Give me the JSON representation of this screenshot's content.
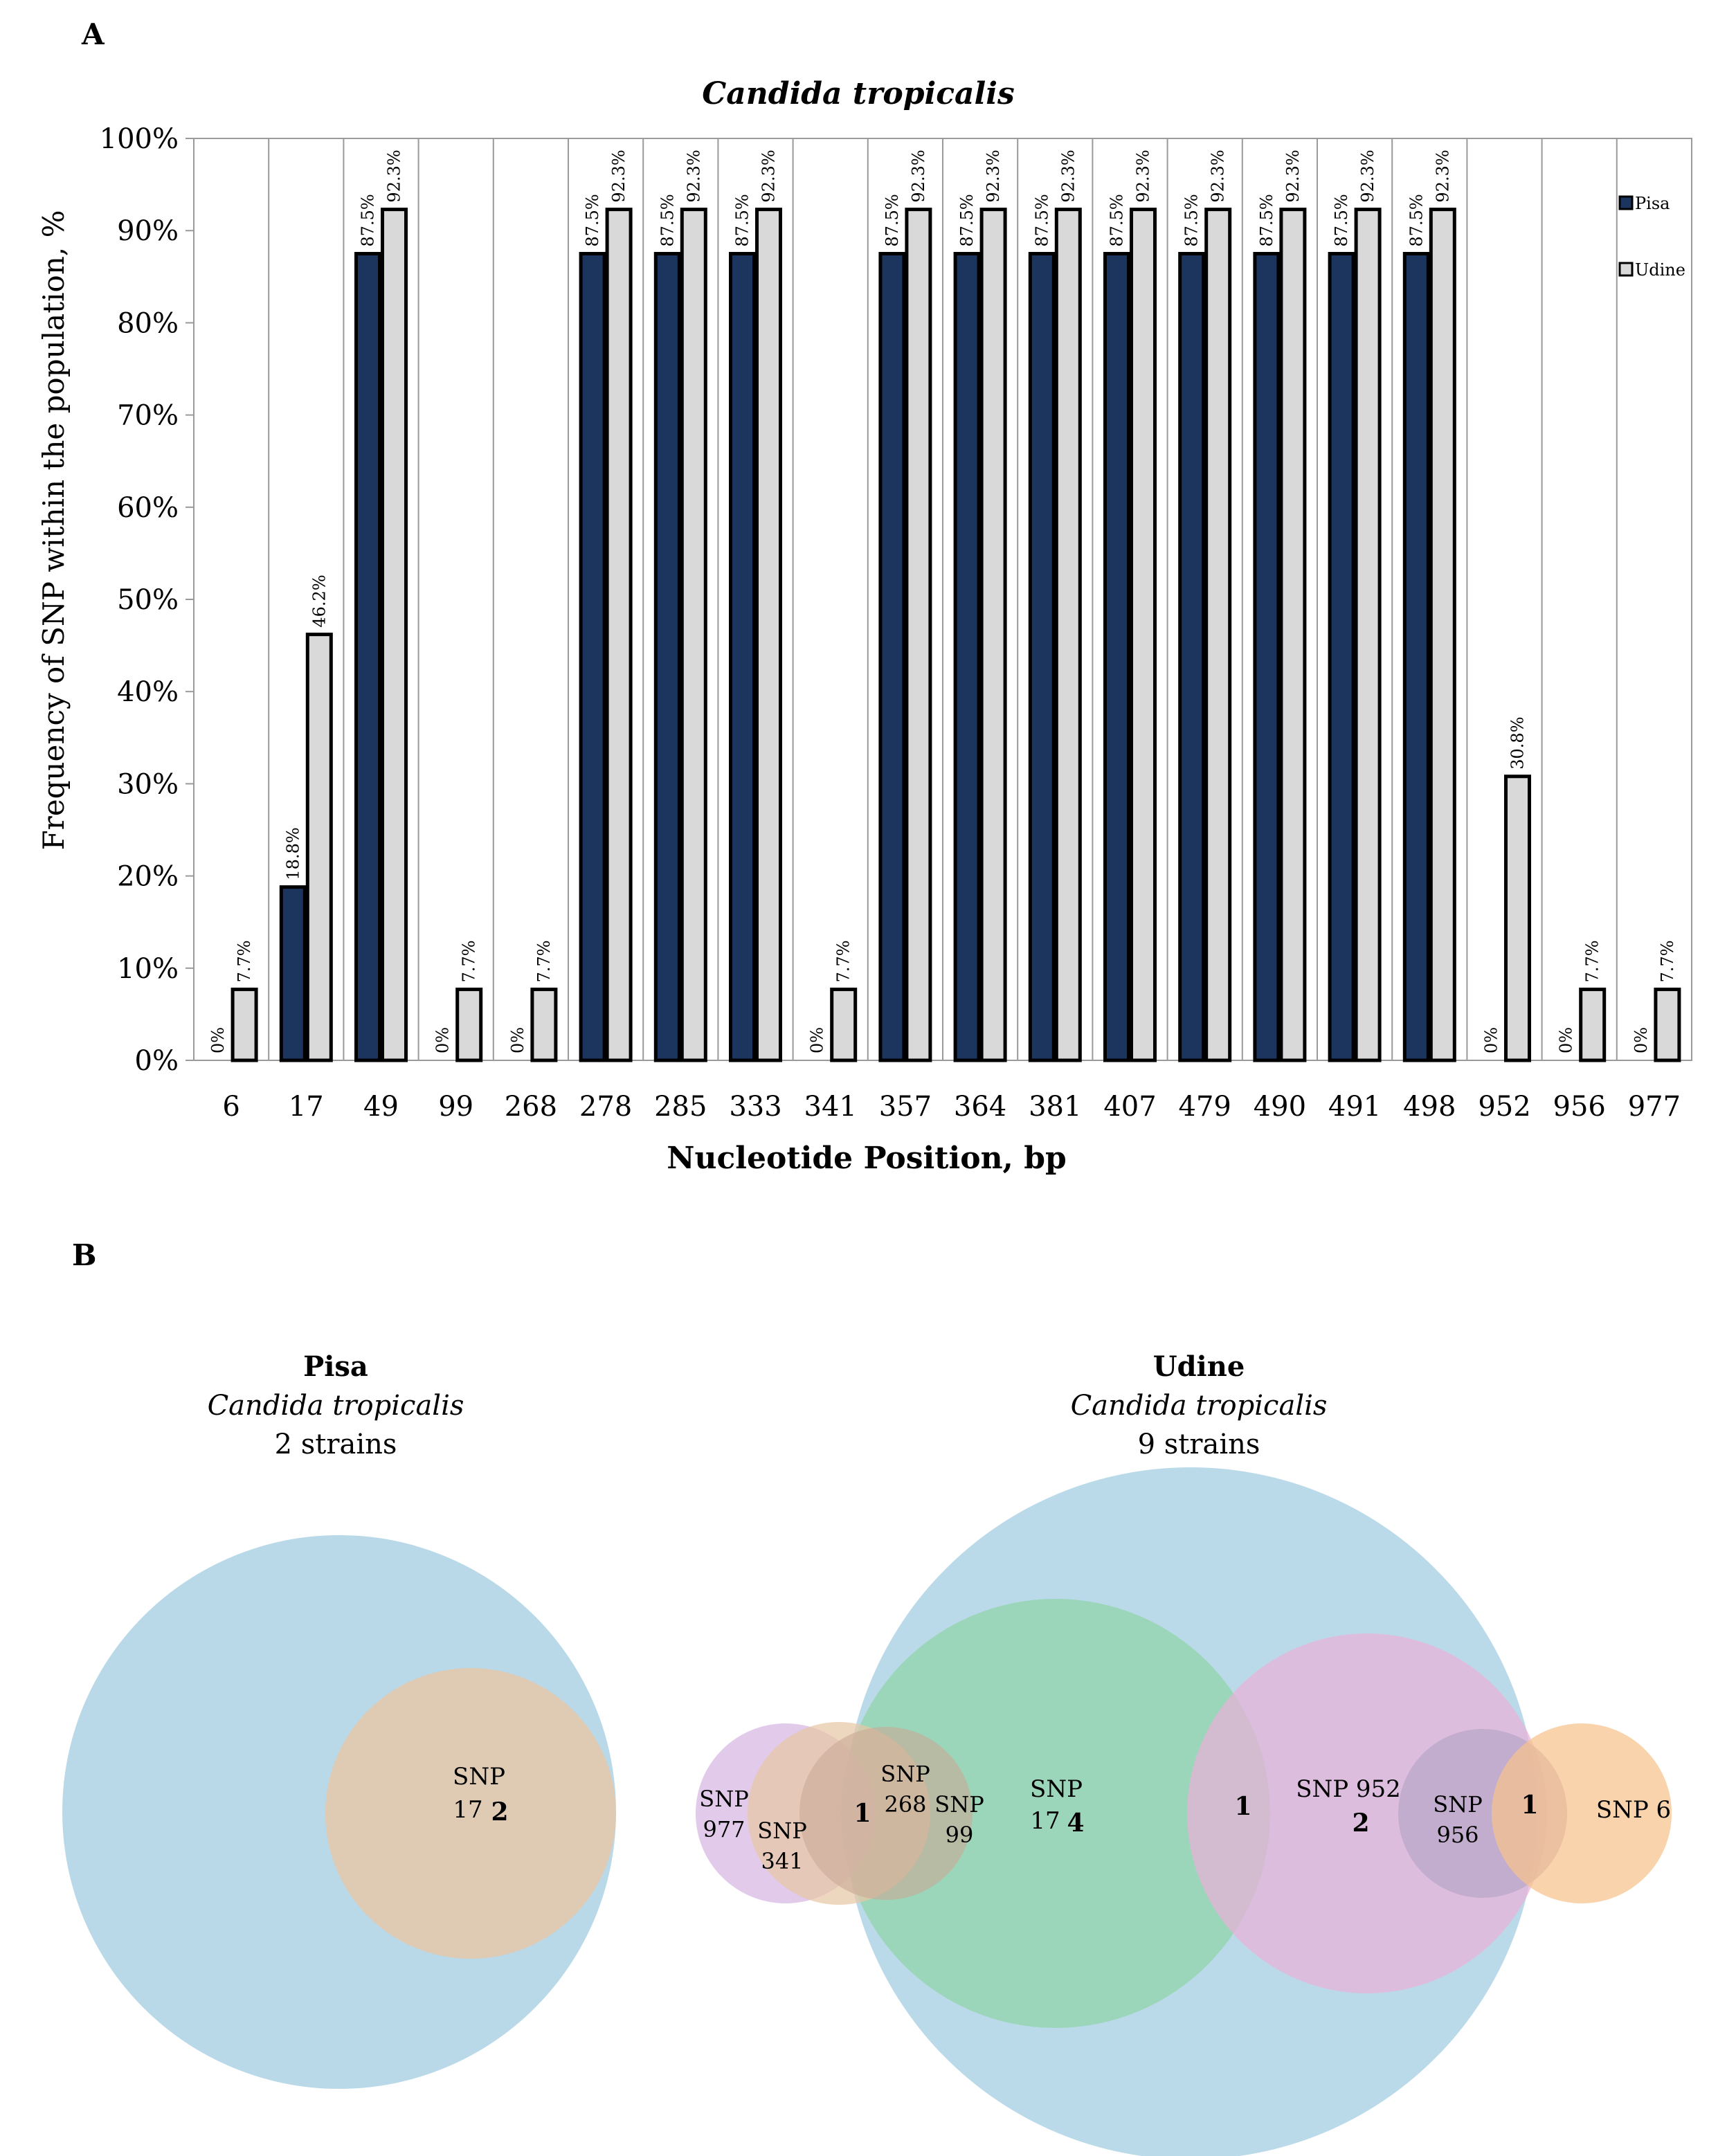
{
  "panel_a": {
    "label": "A",
    "chart_data": {
      "type": "bar",
      "title": "Candida tropicalis",
      "xlabel": "Nucleotide Position, bp",
      "ylabel": "Frequency of SNP within the population, %",
      "ylim": [
        0,
        100
      ],
      "yticks": [
        "0%",
        "10%",
        "20%",
        "30%",
        "40%",
        "50%",
        "60%",
        "70%",
        "80%",
        "90%",
        "100%"
      ],
      "categories": [
        "6",
        "17",
        "49",
        "99",
        "268",
        "278",
        "285",
        "333",
        "341",
        "357",
        "364",
        "381",
        "407",
        "479",
        "490",
        "491",
        "498",
        "952",
        "956",
        "977"
      ],
      "series": [
        {
          "name": "Pisa",
          "color": "#1b355e",
          "values": [
            0,
            18.8,
            87.5,
            0,
            0,
            87.5,
            87.5,
            87.5,
            0,
            87.5,
            87.5,
            87.5,
            87.5,
            87.5,
            87.5,
            87.5,
            87.5,
            0,
            0,
            0
          ],
          "labels": [
            "0%",
            "18.8%",
            "87.5%",
            "0%",
            "0%",
            "87.5%",
            "87.5%",
            "87.5%",
            "0%",
            "87.5%",
            "87.5%",
            "87.5%",
            "87.5%",
            "87.5%",
            "87.5%",
            "87.5%",
            "87.5%",
            "0%",
            "0%",
            "0%"
          ]
        },
        {
          "name": "Udine",
          "color": "#d9d9d9",
          "values": [
            7.7,
            46.2,
            92.3,
            7.7,
            7.7,
            92.3,
            92.3,
            92.3,
            7.7,
            92.3,
            92.3,
            92.3,
            92.3,
            92.3,
            92.3,
            92.3,
            92.3,
            30.8,
            7.7,
            7.7
          ],
          "labels": [
            "7.7%",
            "46.2%",
            "92.3%",
            "7.7%",
            "7.7%",
            "92.3%",
            "92.3%",
            "92.3%",
            "7.7%",
            "92.3%",
            "92.3%",
            "92.3%",
            "92.3%",
            "92.3%",
            "92.3%",
            "92.3%",
            "92.3%",
            "30.8%",
            "7.7%",
            "7.7%"
          ]
        }
      ],
      "legend": [
        "Pisa",
        "Udine"
      ],
      "legend_position": "top-right",
      "grid": "vertical"
    }
  },
  "panel_b": {
    "label": "B",
    "pisa": {
      "title": "Pisa",
      "species": "Candida tropicalis",
      "strains": "2 strains",
      "snp_label": "SNP",
      "snp_pos": "17",
      "snp_count": "2"
    },
    "udine": {
      "title": "Udine",
      "species": "Candida tropicalis",
      "strains": "9 strains",
      "snp977_a": "SNP",
      "snp977_b": "977",
      "snp341_a": "SNP",
      "snp341_b": "341",
      "count_left": "1",
      "snp268_a": "SNP",
      "snp268_b": "268",
      "snp99_a": "SNP",
      "snp99_b": "99",
      "snp17_a": "SNP",
      "snp17_b": "17",
      "snp17_count": "4",
      "count_mid": "1",
      "snp952": "SNP 952",
      "snp952_count": "2",
      "snp956_a": "SNP",
      "snp956_b": "956",
      "count_right": "1",
      "snp6": "SNP 6"
    },
    "colors": {
      "blue": "#a8cfe3",
      "tan": "#e8c7a6",
      "green": "#8fd4a8",
      "purple": "#d7b8e3",
      "pink": "#ebb0d8",
      "orange": "#f6c28c"
    }
  }
}
